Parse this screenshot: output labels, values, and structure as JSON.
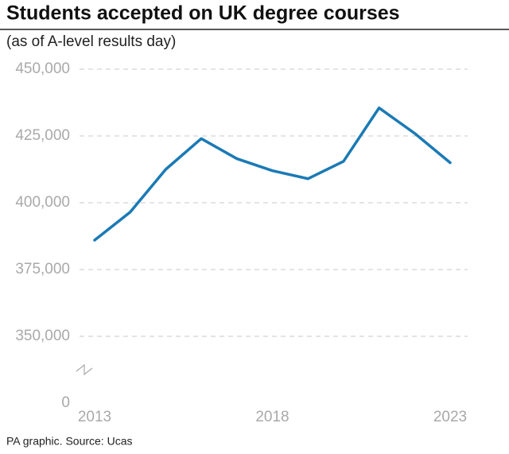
{
  "chart_data": {
    "type": "line",
    "title": "Students accepted on UK degree courses",
    "subtitle": "(as of A-level results day)",
    "source": "PA graphic. Source: Ucas",
    "x": [
      2013,
      2014,
      2015,
      2016,
      2017,
      2018,
      2019,
      2020,
      2021,
      2022,
      2023
    ],
    "values": [
      386000,
      396500,
      412500,
      424000,
      416500,
      412000,
      409000,
      415500,
      435500,
      426000,
      415000
    ],
    "color": "#1a7ab5",
    "xlim": [
      2013,
      2023
    ],
    "xticks": [
      2013,
      2018,
      2023
    ],
    "ylim": [
      0,
      450000
    ],
    "yticks": [
      0,
      {
        "value": 350000,
        "label": "350,000"
      },
      {
        "value": 375000,
        "label": "375,000"
      },
      {
        "value": 400000,
        "label": "400,000"
      },
      {
        "value": 425000,
        "label": "425,000"
      },
      {
        "value": 450000,
        "label": "450,000"
      }
    ],
    "axis_break": true,
    "grid": true
  }
}
